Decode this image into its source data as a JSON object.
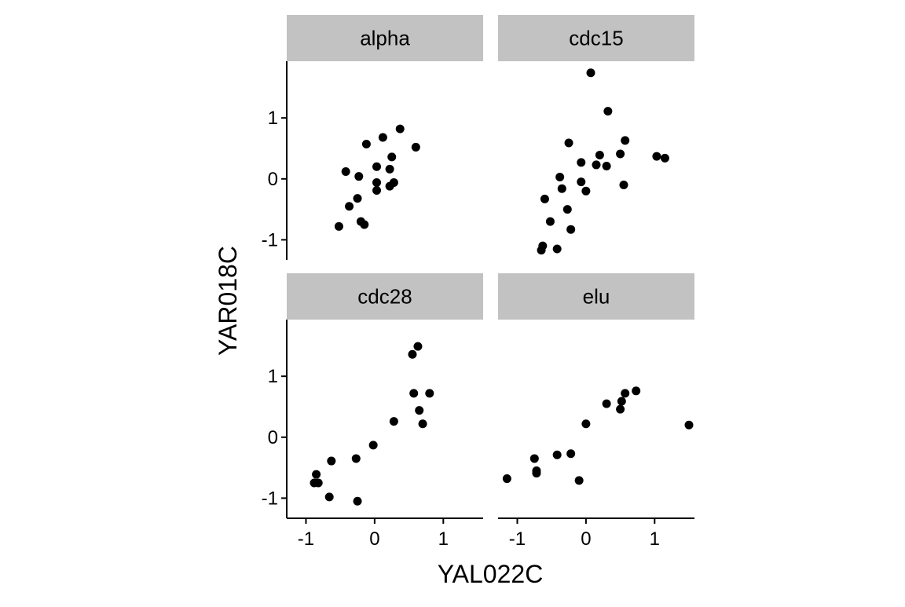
{
  "chart_data": {
    "type": "scatter",
    "facet_layout": "2x2 grid",
    "xlabel": "YAL022C",
    "ylabel": "YAR018C",
    "xlim": [
      -1.28,
      1.58
    ],
    "ylim": [
      -1.33,
      1.93
    ],
    "x_ticks": [
      -1,
      0,
      1
    ],
    "x_tick_labels": [
      "-1",
      "0",
      "1"
    ],
    "y_ticks": [
      -1,
      0,
      1
    ],
    "y_tick_labels": [
      "-1",
      "0",
      "1"
    ],
    "grid": false,
    "legend": "none",
    "point_color": "#000000",
    "strip_color": "#c2c2c2",
    "panels": [
      {
        "label": "alpha",
        "points": [
          {
            "x": -0.52,
            "y": -0.78
          },
          {
            "x": -0.42,
            "y": 0.12
          },
          {
            "x": -0.37,
            "y": -0.45
          },
          {
            "x": -0.25,
            "y": -0.32
          },
          {
            "x": -0.23,
            "y": 0.04
          },
          {
            "x": -0.2,
            "y": -0.7
          },
          {
            "x": -0.15,
            "y": -0.75
          },
          {
            "x": -0.12,
            "y": 0.57
          },
          {
            "x": 0.03,
            "y": 0.2
          },
          {
            "x": 0.03,
            "y": -0.06
          },
          {
            "x": 0.03,
            "y": -0.19
          },
          {
            "x": 0.12,
            "y": 0.68
          },
          {
            "x": 0.22,
            "y": 0.16
          },
          {
            "x": 0.22,
            "y": -0.12
          },
          {
            "x": 0.25,
            "y": 0.36
          },
          {
            "x": 0.28,
            "y": -0.06
          },
          {
            "x": 0.37,
            "y": 0.82
          },
          {
            "x": 0.6,
            "y": 0.52
          }
        ]
      },
      {
        "label": "cdc15",
        "points": [
          {
            "x": -0.65,
            "y": -1.17
          },
          {
            "x": -0.63,
            "y": -1.1
          },
          {
            "x": -0.6,
            "y": -0.33
          },
          {
            "x": -0.52,
            "y": -0.7
          },
          {
            "x": -0.42,
            "y": -1.15
          },
          {
            "x": -0.38,
            "y": 0.03
          },
          {
            "x": -0.35,
            "y": -0.16
          },
          {
            "x": -0.27,
            "y": -0.5
          },
          {
            "x": -0.25,
            "y": 0.59
          },
          {
            "x": -0.22,
            "y": -0.83
          },
          {
            "x": -0.07,
            "y": 0.27
          },
          {
            "x": -0.07,
            "y": -0.05
          },
          {
            "x": 0.0,
            "y": -0.2
          },
          {
            "x": 0.07,
            "y": 1.74
          },
          {
            "x": 0.15,
            "y": 0.23
          },
          {
            "x": 0.2,
            "y": 0.39
          },
          {
            "x": 0.3,
            "y": 0.21
          },
          {
            "x": 0.32,
            "y": 1.11
          },
          {
            "x": 0.5,
            "y": 0.41
          },
          {
            "x": 0.55,
            "y": -0.1
          },
          {
            "x": 0.57,
            "y": 0.63
          },
          {
            "x": 1.03,
            "y": 0.37
          },
          {
            "x": 1.15,
            "y": 0.34
          }
        ]
      },
      {
        "label": "cdc28",
        "points": [
          {
            "x": -0.88,
            "y": -0.75
          },
          {
            "x": -0.85,
            "y": -0.61
          },
          {
            "x": -0.82,
            "y": -0.75
          },
          {
            "x": -0.66,
            "y": -0.98
          },
          {
            "x": -0.63,
            "y": -0.39
          },
          {
            "x": -0.27,
            "y": -0.35
          },
          {
            "x": -0.25,
            "y": -1.05
          },
          {
            "x": -0.02,
            "y": -0.13
          },
          {
            "x": 0.28,
            "y": 0.26
          },
          {
            "x": 0.55,
            "y": 1.36
          },
          {
            "x": 0.57,
            "y": 0.72
          },
          {
            "x": 0.63,
            "y": 1.49
          },
          {
            "x": 0.65,
            "y": 0.44
          },
          {
            "x": 0.7,
            "y": 0.22
          },
          {
            "x": 0.8,
            "y": 0.72
          }
        ]
      },
      {
        "label": "elu",
        "points": [
          {
            "x": -1.15,
            "y": -0.68
          },
          {
            "x": -0.75,
            "y": -0.35
          },
          {
            "x": -0.72,
            "y": -0.59
          },
          {
            "x": -0.72,
            "y": -0.55
          },
          {
            "x": -0.42,
            "y": -0.29
          },
          {
            "x": -0.22,
            "y": -0.27
          },
          {
            "x": -0.1,
            "y": -0.71
          },
          {
            "x": 0.0,
            "y": 0.22
          },
          {
            "x": 0.3,
            "y": 0.55
          },
          {
            "x": 0.5,
            "y": 0.46
          },
          {
            "x": 0.52,
            "y": 0.59
          },
          {
            "x": 0.57,
            "y": 0.72
          },
          {
            "x": 0.73,
            "y": 0.76
          },
          {
            "x": 1.5,
            "y": 0.2
          }
        ]
      }
    ]
  }
}
